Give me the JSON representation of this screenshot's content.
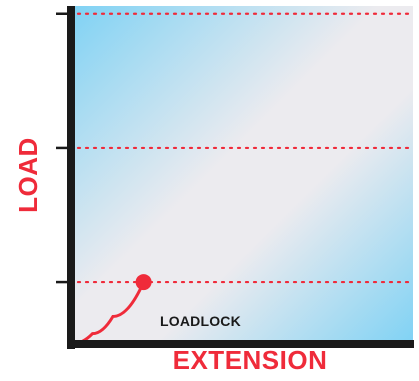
{
  "chart_data": {
    "type": "line",
    "xlabel": "EXTENSION",
    "ylabel": "LOAD",
    "xlim": [
      0,
      1
    ],
    "ylim": [
      0,
      1
    ],
    "x_ticks": [],
    "y_ticks": [
      0.18,
      0.57,
      0.96
    ],
    "grid": "dotted horizontal lines at each y tick",
    "series": [
      {
        "x": [
          0.0,
          0.06,
          0.12,
          0.21
        ],
        "y": [
          0.0,
          0.03,
          0.08,
          0.18
        ]
      }
    ],
    "annotations": [
      {
        "text": "LOADLOCK",
        "x": 0.21,
        "y": 0.18
      }
    ],
    "colors": {
      "axis": "#1a1a1a",
      "gridline": "#ef2b3a",
      "curve": "#ef2b3a",
      "marker": "#ef2b3a",
      "title": "#ef2b3a",
      "bg_cyan": "#7fd2f4",
      "bg_light": "#ecebef"
    }
  }
}
